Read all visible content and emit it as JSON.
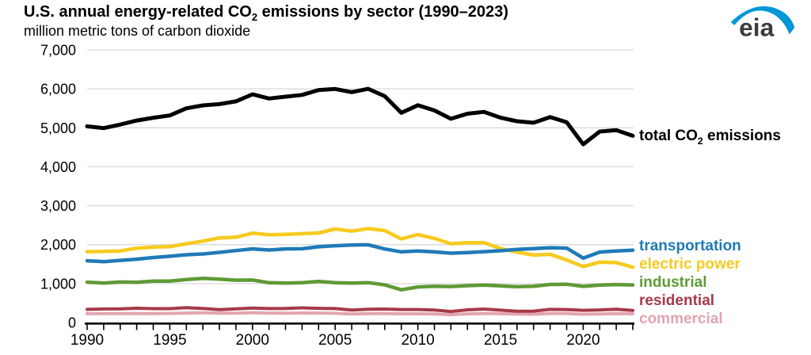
{
  "header": {
    "title": {
      "prefix": "U.S. annual energy-related CO",
      "sub": "2",
      "suffix": " emissions by sector (1990–2023)"
    },
    "subtitle": "million metric tons of carbon dioxide",
    "logo_text": "eia",
    "logo_swoosh_color": "#0096d7",
    "logo_text_color": "#3c3c3c"
  },
  "legend": {
    "total": {
      "prefix": "total CO",
      "sub": "2",
      "suffix": " emissions",
      "color": "#000000"
    },
    "items": [
      {
        "id": "transportation",
        "label": "transportation",
        "color": "#1f7ab8"
      },
      {
        "id": "electric-power",
        "label": "electric power",
        "color": "#f7ca1e"
      },
      {
        "id": "industrial",
        "label": "industrial",
        "color": "#5f9a35"
      },
      {
        "id": "residential",
        "label": "residential",
        "color": "#a63a48"
      },
      {
        "id": "commercial",
        "label": "commercial",
        "color": "#e2a4b0"
      }
    ]
  },
  "chart_data": {
    "type": "line",
    "title": "U.S. annual energy-related CO2 emissions by sector (1990–2023)",
    "ylabel": "million metric tons of carbon dioxide",
    "xlabel": "",
    "grid": "horizontal",
    "grid_color": "#d9d9d9",
    "axis_color": "#000000",
    "ylim": [
      0,
      7000
    ],
    "xlim": [
      1990,
      2023
    ],
    "legend_position": "right-of-lines",
    "x": [
      1990,
      1991,
      1992,
      1993,
      1994,
      1995,
      1996,
      1997,
      1998,
      1999,
      2000,
      2001,
      2002,
      2003,
      2004,
      2005,
      2006,
      2007,
      2008,
      2009,
      2010,
      2011,
      2012,
      2013,
      2014,
      2015,
      2016,
      2017,
      2018,
      2019,
      2020,
      2021,
      2022,
      2023
    ],
    "yticks": [
      {
        "value": 0,
        "label": "0"
      },
      {
        "value": 1000,
        "label": "1,000"
      },
      {
        "value": 2000,
        "label": "2,000"
      },
      {
        "value": 3000,
        "label": "3,000"
      },
      {
        "value": 4000,
        "label": "4,000"
      },
      {
        "value": 5000,
        "label": "5,000"
      },
      {
        "value": 6000,
        "label": "6,000"
      },
      {
        "value": 7000,
        "label": "7,000"
      }
    ],
    "xticks": [
      {
        "year": 1990,
        "label": "1990"
      },
      {
        "year": 1995,
        "label": "1995"
      },
      {
        "year": 2000,
        "label": "2000"
      },
      {
        "year": 2005,
        "label": "2005"
      },
      {
        "year": 2010,
        "label": "2010"
      },
      {
        "year": 2015,
        "label": "2015"
      },
      {
        "year": 2020,
        "label": "2020"
      }
    ],
    "series": [
      {
        "id": "total",
        "name": "total CO2 emissions",
        "color": "#000000",
        "stroke_width": 5,
        "values": [
          5039,
          4991,
          5084,
          5186,
          5259,
          5318,
          5501,
          5576,
          5608,
          5679,
          5861,
          5753,
          5800,
          5845,
          5971,
          5996,
          5915,
          6001,
          5811,
          5387,
          5580,
          5446,
          5232,
          5361,
          5408,
          5260,
          5169,
          5130,
          5274,
          5143,
          4577,
          4904,
          4938,
          4795
        ]
      },
      {
        "id": "electric-power",
        "name": "electric power",
        "color": "#f7ca1e",
        "stroke_width": 4.5,
        "values": [
          1820,
          1826,
          1838,
          1909,
          1935,
          1947,
          2022,
          2090,
          2173,
          2190,
          2293,
          2252,
          2265,
          2281,
          2299,
          2402,
          2346,
          2412,
          2360,
          2146,
          2258,
          2158,
          2022,
          2050,
          2050,
          1900,
          1809,
          1732,
          1753,
          1606,
          1439,
          1551,
          1539,
          1421
        ]
      },
      {
        "id": "transportation",
        "name": "transportation",
        "color": "#1f7ab8",
        "stroke_width": 4.5,
        "values": [
          1586,
          1563,
          1596,
          1625,
          1669,
          1702,
          1740,
          1760,
          1800,
          1848,
          1891,
          1862,
          1890,
          1895,
          1945,
          1972,
          1991,
          1996,
          1888,
          1816,
          1836,
          1814,
          1780,
          1796,
          1820,
          1843,
          1879,
          1899,
          1920,
          1911,
          1655,
          1808,
          1836,
          1857
        ]
      },
      {
        "id": "industrial",
        "name": "industrial",
        "color": "#5f9a35",
        "stroke_width": 4.5,
        "values": [
          1035,
          1014,
          1040,
          1032,
          1062,
          1065,
          1103,
          1133,
          1114,
          1086,
          1091,
          1022,
          1014,
          1022,
          1057,
          1023,
          1014,
          1024,
          967,
          841,
          914,
          930,
          924,
          946,
          960,
          940,
          920,
          932,
          977,
          983,
          927,
          961,
          975,
          964
        ]
      },
      {
        "id": "commercial",
        "name": "commercial",
        "color": "#e2a4b0",
        "stroke_width": 4,
        "values": [
          228,
          228,
          228,
          229,
          230,
          233,
          242,
          250,
          239,
          239,
          252,
          243,
          238,
          245,
          242,
          236,
          219,
          229,
          232,
          224,
          224,
          220,
          201,
          221,
          231,
          225,
          215,
          213,
          232,
          231,
          211,
          217,
          229,
          224
        ]
      },
      {
        "id": "residential",
        "name": "residential",
        "color": "#a63a48",
        "stroke_width": 4,
        "values": [
          338,
          347,
          349,
          366,
          357,
          356,
          381,
          361,
          331,
          350,
          371,
          358,
          362,
          376,
          365,
          358,
          321,
          341,
          346,
          334,
          334,
          322,
          282,
          326,
          345,
          317,
          292,
          293,
          338,
          333,
          314,
          324,
          340,
          310
        ]
      }
    ]
  }
}
